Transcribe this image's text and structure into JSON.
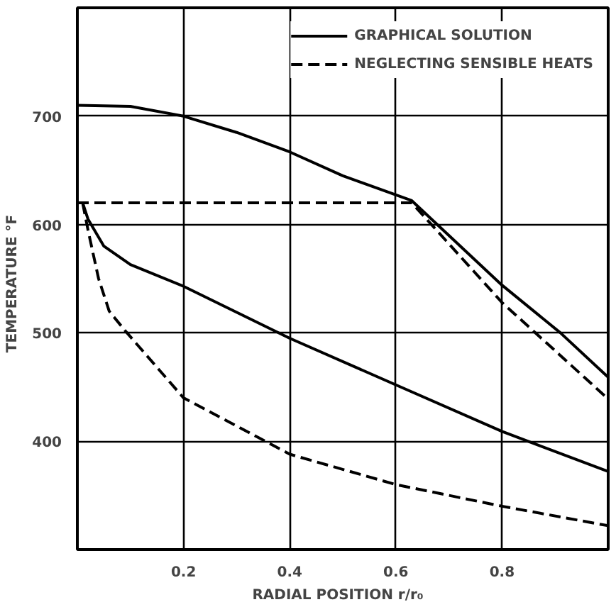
{
  "chart_data": {
    "type": "line",
    "xlabel": "RADIAL POSITION   r/r₀",
    "ylabel": "TEMPERATURE   °F",
    "xlim": [
      0,
      1.0
    ],
    "ylim": [
      300,
      800
    ],
    "xticks": [
      0.2,
      0.4,
      0.6,
      0.8
    ],
    "yticks": [
      400,
      500,
      600,
      700
    ],
    "grid": true,
    "legend": "top right",
    "marker": "none",
    "series": [
      {
        "name": "GRAPHICAL SOLUTION",
        "color": "#000000",
        "line_style": "solid",
        "x": [
          0.0,
          0.1,
          0.2,
          0.3,
          0.4,
          0.5,
          0.63,
          0.8,
          0.91,
          1.0
        ],
        "values": [
          710,
          709,
          700,
          685,
          667,
          645,
          622,
          544,
          500,
          459
        ]
      },
      {
        "name": "NEGLECTING SENSIBLE HEATS",
        "color": "#000000",
        "line_style": "dashed",
        "x": [
          0.0,
          0.63,
          0.8,
          1.0
        ],
        "values": [
          620,
          620,
          528,
          439
        ]
      },
      {
        "color": "#000000",
        "line_style": "solid",
        "x": [
          0.01,
          0.02,
          0.05,
          0.1,
          0.2,
          0.4,
          0.6,
          0.8,
          1.0
        ],
        "values": [
          620,
          605,
          580,
          563,
          543,
          495,
          452,
          409,
          372
        ]
      },
      {
        "color": "#000000",
        "line_style": "dashed",
        "x": [
          0.01,
          0.02,
          0.04,
          0.06,
          0.09,
          0.2,
          0.4,
          0.6,
          0.8,
          1.0
        ],
        "values": [
          620,
          595,
          550,
          520,
          502,
          440,
          388,
          360,
          340,
          322
        ]
      }
    ]
  }
}
